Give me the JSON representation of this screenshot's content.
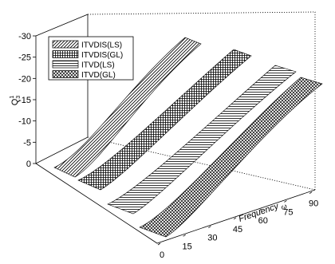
{
  "chart_data": {
    "type": "surface-3d",
    "title": "",
    "zlabel": "Q",
    "zlabel_superscript": "1",
    "zlabel_subscript": "3",
    "ylabel": "Frequency",
    "ylabel_suffix": "ω",
    "zlim": [
      -30,
      0
    ],
    "zticks": [
      "-30",
      "-25",
      "-20",
      "-15",
      "-10",
      "-5",
      "0"
    ],
    "ylim": [
      0,
      90
    ],
    "yticks": [
      "0",
      "15",
      "30",
      "45",
      "60",
      "75",
      "90"
    ],
    "legend_position": "top-left",
    "series": [
      {
        "name": "ITVDIS(LS)",
        "pattern": "diagonal",
        "z_start": -5.2,
        "z_end": -25.3
      },
      {
        "name": "ITVDIS(GL)",
        "pattern": "grid",
        "z_start": -5.0,
        "z_end": -25.0
      },
      {
        "name": "ITVD(LS)",
        "pattern": "horizontal",
        "z_start": -2.5,
        "z_end": -22.0
      },
      {
        "name": "ITVD(GL)",
        "pattern": "crosshatch",
        "z_start": -2.3,
        "z_end": -21.8
      }
    ]
  }
}
